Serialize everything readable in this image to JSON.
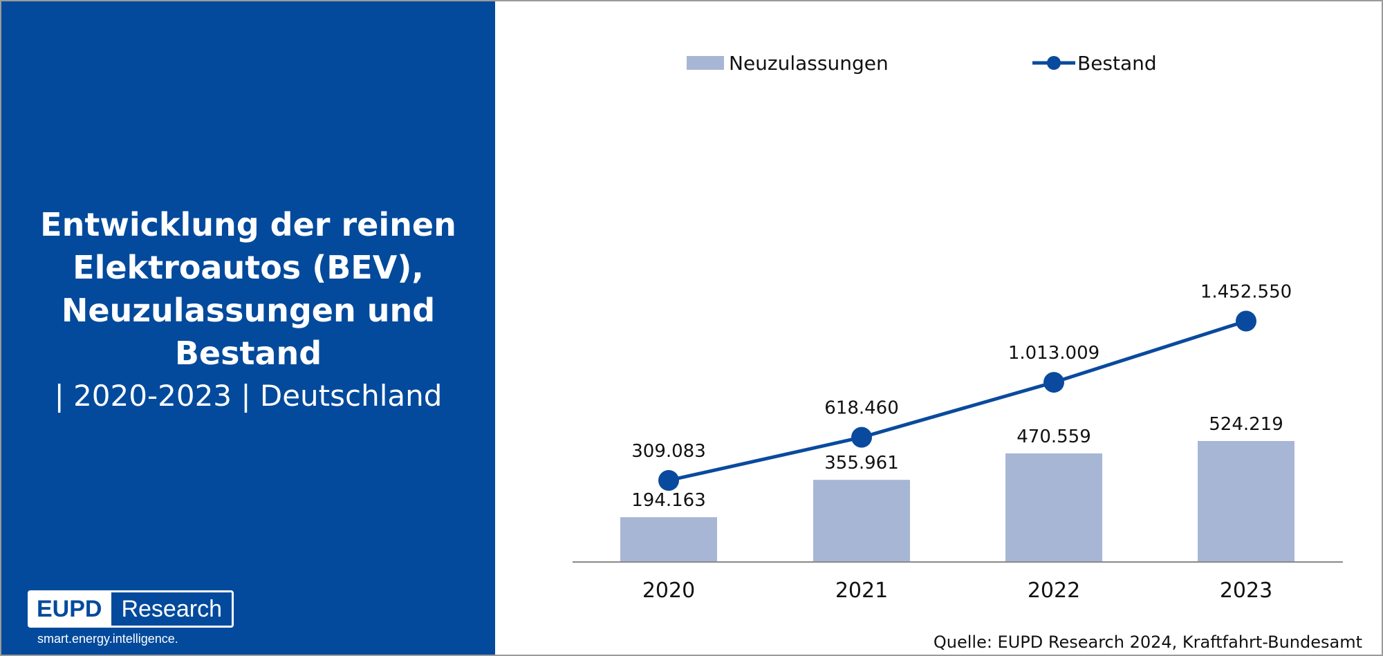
{
  "title": {
    "main": "Entwicklung der reinen Elektroautos (BEV), Neuzulassungen und Bestand",
    "sub": "| 2020-2023 | Deutschland"
  },
  "logo": {
    "brand": "EUPD",
    "name": "Research",
    "tagline": "smart.energy.intelligence."
  },
  "source": "Quelle: EUPD Research 2024, Kraftfahrt-Bundesamt",
  "colors": {
    "panel": "#034a9c",
    "bar": "#a8b6d5",
    "line": "#0a4a9e",
    "axis": "#888888"
  },
  "chart_data": {
    "type": "bar",
    "categories": [
      "2020",
      "2021",
      "2022",
      "2023"
    ],
    "series": [
      {
        "name": "Neuzulassungen",
        "type": "bar",
        "values": [
          194163,
          355961,
          470559,
          524219
        ],
        "labels": [
          "194.163",
          "355.961",
          "470.559",
          "524.219"
        ]
      },
      {
        "name": "Bestand",
        "type": "line",
        "values": [
          309083,
          618460,
          1013009,
          1452550
        ],
        "labels": [
          "309.083",
          "618.460",
          "1.013.009",
          "1.452.550"
        ]
      }
    ],
    "legend": "top-center",
    "grid": false
  }
}
